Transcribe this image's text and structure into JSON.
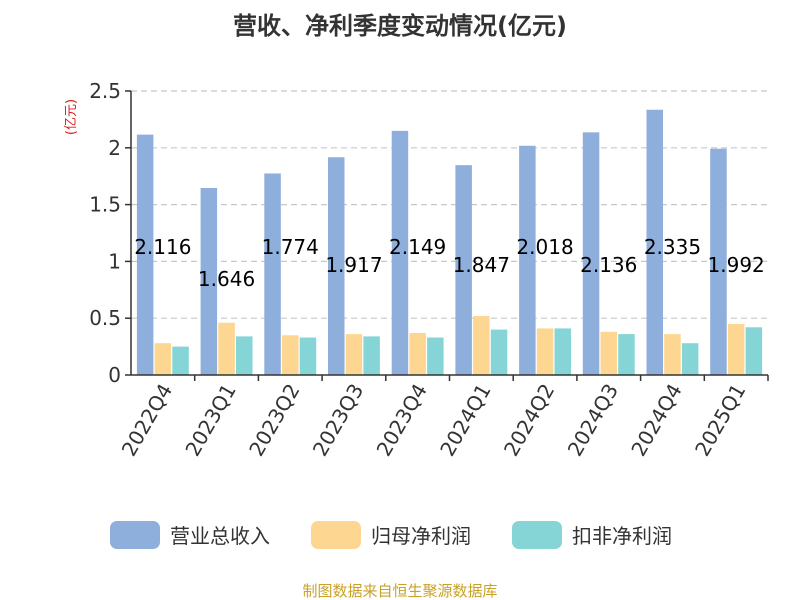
{
  "chart_data": {
    "type": "bar",
    "title": "营收、净利季度变动情况(亿元)",
    "unit_label": "(亿元)",
    "categories": [
      "2022Q4",
      "2023Q1",
      "2023Q2",
      "2023Q3",
      "2023Q4",
      "2024Q1",
      "2024Q2",
      "2024Q3",
      "2024Q4",
      "2025Q1"
    ],
    "series": [
      {
        "name": "营业总收入",
        "color": "#8eaedc",
        "values": [
          2.116,
          1.646,
          1.774,
          1.917,
          2.149,
          1.847,
          2.018,
          2.136,
          2.335,
          1.992
        ]
      },
      {
        "name": "归母净利润",
        "color": "#fdd692",
        "values": [
          0.28,
          0.46,
          0.35,
          0.36,
          0.37,
          0.52,
          0.41,
          0.38,
          0.36,
          0.45
        ]
      },
      {
        "name": "扣非净利润",
        "color": "#86d5d6",
        "values": [
          0.25,
          0.34,
          0.33,
          0.34,
          0.33,
          0.4,
          0.41,
          0.36,
          0.28,
          0.42
        ]
      }
    ],
    "data_labels": [
      "2.116",
      "1.646",
      "1.774",
      "1.917",
      "2.149",
      "1.847",
      "2.018",
      "2.136",
      "2.335",
      "1.992"
    ],
    "y_ticks": [
      "0",
      "0.5",
      "1",
      "1.5",
      "2",
      "2.5"
    ],
    "ylim": [
      0,
      2.5
    ],
    "grid": "horizontal-dashed",
    "legend_position": "bottom"
  },
  "source": "制图数据来自恒生聚源数据库"
}
